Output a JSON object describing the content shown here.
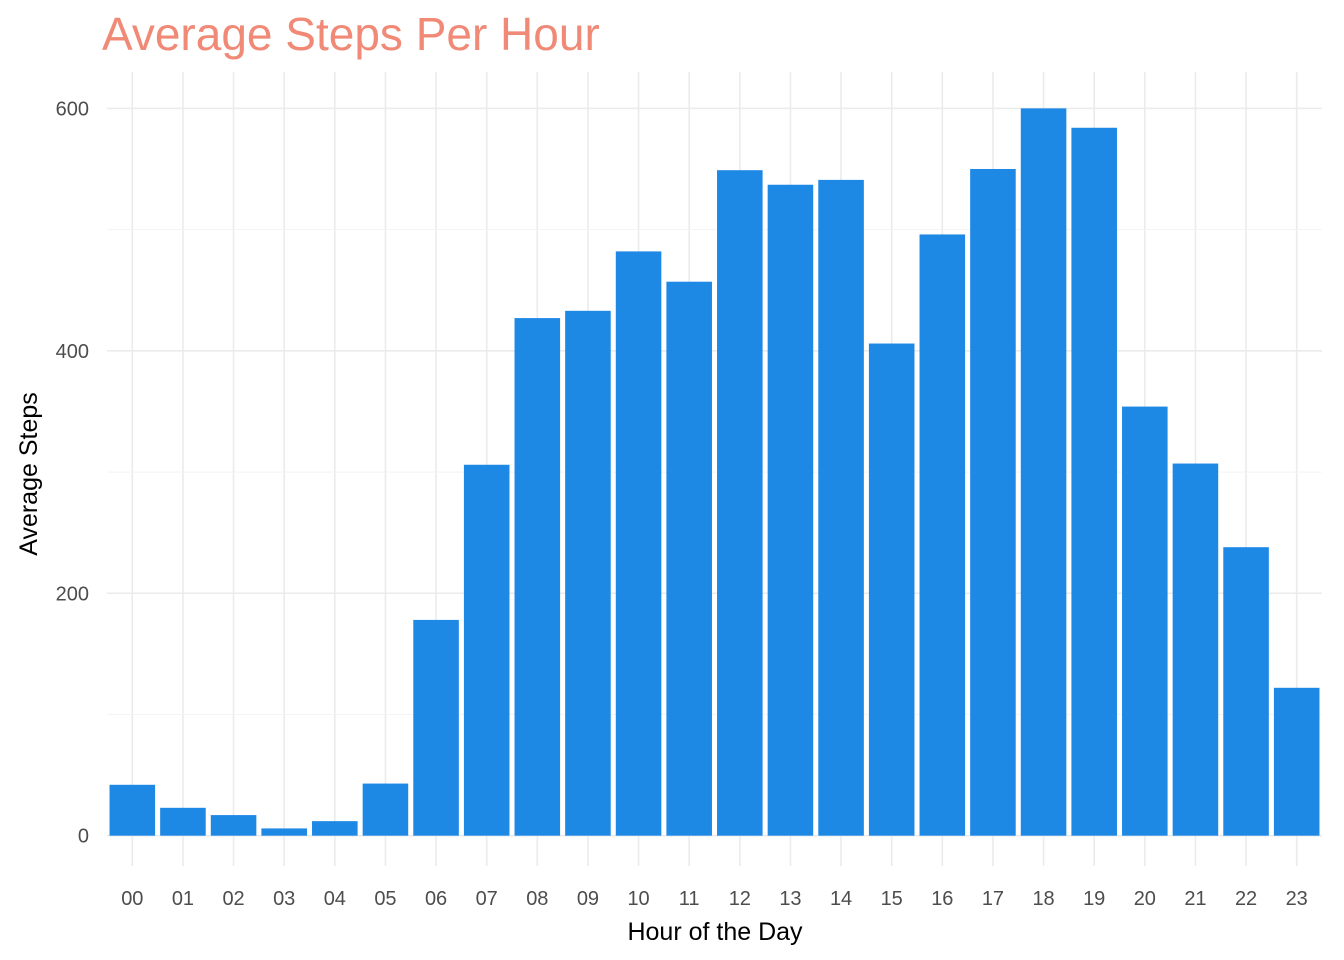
{
  "chart_data": {
    "type": "bar",
    "title": "Average Steps Per Hour",
    "xlabel": "Hour of the Day",
    "ylabel": "Average Steps",
    "categories": [
      "00",
      "01",
      "02",
      "03",
      "04",
      "05",
      "06",
      "07",
      "08",
      "09",
      "10",
      "11",
      "12",
      "13",
      "14",
      "15",
      "16",
      "17",
      "18",
      "19",
      "20",
      "21",
      "22",
      "23"
    ],
    "values": [
      42,
      23,
      17,
      6,
      12,
      43,
      178,
      306,
      427,
      433,
      482,
      457,
      549,
      537,
      541,
      406,
      496,
      550,
      600,
      584,
      354,
      307,
      238,
      122
    ],
    "ylim": [
      -25,
      630
    ],
    "yticks": [
      0,
      200,
      400,
      600
    ],
    "grid": true,
    "legend": "none",
    "colors": {
      "bar": "#1e88e5",
      "title": "#f08a77"
    }
  }
}
